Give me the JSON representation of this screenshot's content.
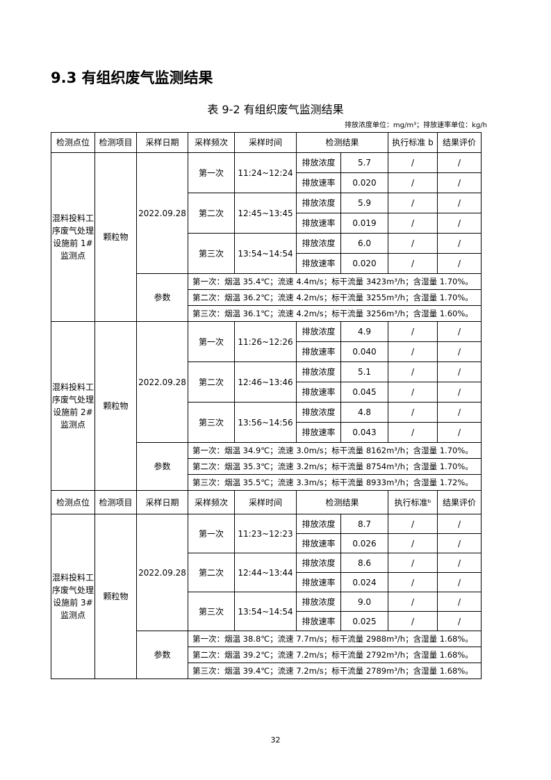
{
  "section_title": "9.3 有组织废气监测结果",
  "table_caption": "表 9-2 有组织废气监测结果",
  "unit_note": "排放浓度单位：mg/m³；排放速率单位：kg/h",
  "headers": [
    "检测点位",
    "检测项目",
    "采样日期",
    "采样频次",
    "采样时间",
    "检测结果",
    "执行标准 b",
    "结果评价"
  ],
  "headers_repeat": [
    "检测点位",
    "检测项目",
    "采样日期",
    "采样频次",
    "采样时间",
    "检测结果",
    "执行标准ᵇ",
    "结果评价"
  ],
  "params_label": "参数",
  "blocks": [
    {
      "location": "混料投料工序废气处理设施前 1#监测点",
      "item": "颗粒物",
      "date": "2022.09.28",
      "samples": [
        {
          "freq": "第一次",
          "time": "11:24~12:24",
          "conc": "5.7",
          "rate": "0.020"
        },
        {
          "freq": "第二次",
          "time": "12:45~13:45",
          "conc": "5.9",
          "rate": "0.019"
        },
        {
          "freq": "第三次",
          "time": "13:54~14:54",
          "conc": "6.0",
          "rate": "0.020"
        }
      ],
      "params": [
        "第一次：烟温 35.4℃；流速 4.4m/s；标干流量 3423m³/h；含湿量 1.70%。",
        "第二次：烟温 36.2℃；流速 4.2m/s；标干流量 3255m³/h；含湿量 1.70%。",
        "第三次：烟温 36.1℃；流速 4.2m/s；标干流量 3256m³/h；含湿量 1.60%。"
      ]
    },
    {
      "location": "混料投料工序废气处理设施前 2#监测点",
      "item": "颗粒物",
      "date": "2022.09.28",
      "samples": [
        {
          "freq": "第一次",
          "time": "11:26~12:26",
          "conc": "4.9",
          "rate": "0.040"
        },
        {
          "freq": "第二次",
          "time": "12:46~13:46",
          "conc": "5.1",
          "rate": "0.045"
        },
        {
          "freq": "第三次",
          "time": "13:56~14:56",
          "conc": "4.8",
          "rate": "0.043"
        }
      ],
      "params": [
        "第一次：烟温 34.9℃；流速 3.0m/s；标干流量 8162m³/h；含湿量 1.70%。",
        "第二次：烟温 35.3℃；流速 3.2m/s；标干流量 8754m³/h；含湿量 1.70%。",
        "第三次：烟温 35.5℃；流速 3.3m/s；标干流量 8933m³/h；含湿量 1.72%。"
      ]
    },
    {
      "location": "混料投料工序废气处理设施前 3#监测点",
      "item": "颗粒物",
      "date": "2022.09.28",
      "samples": [
        {
          "freq": "第一次",
          "time": "11:23~12:23",
          "conc": "8.7",
          "rate": "0.026"
        },
        {
          "freq": "第二次",
          "time": "12:44~13:44",
          "conc": "8.6",
          "rate": "0.024"
        },
        {
          "freq": "第三次",
          "time": "13:54~14:54",
          "conc": "9.0",
          "rate": "0.025"
        }
      ],
      "params": [
        "第一次：烟温 38.8℃；流速 7.7m/s；标干流量 2988m³/h；含湿量 1.68%。",
        "第二次：烟温 39.2℃；流速 7.2m/s；标干流量 2792m³/h；含湿量 1.68%。",
        "第三次：烟温 39.4℃；流速 7.2m/s；标干流量 2789m³/h；含湿量 1.68%。"
      ]
    }
  ],
  "labels": {
    "conc": "排放浓度",
    "rate": "排放速率",
    "standard": "/",
    "evaluation": "/"
  },
  "page_number": "32"
}
